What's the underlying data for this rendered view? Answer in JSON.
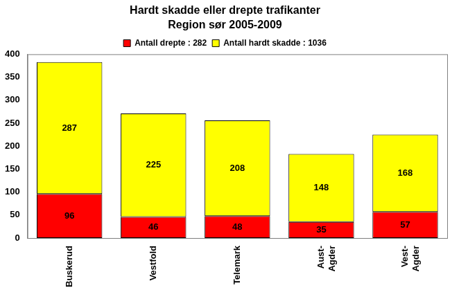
{
  "chart_data": {
    "type": "bar",
    "title": "Hardt skadde eller drepte trafikanter",
    "subtitle": "Region sør 2005-2009",
    "categories": [
      "Buskerud",
      "Vestfold",
      "Telemark",
      [
        "Aust-",
        "Agder"
      ],
      [
        "Vest-",
        "Agder"
      ]
    ],
    "series": [
      {
        "name": "Antall drepte : 282",
        "color": "#ff0000",
        "values": [
          96,
          46,
          48,
          35,
          57
        ]
      },
      {
        "name": "Antall hardt skadde : 1036",
        "color": "#ffff00",
        "values": [
          287,
          225,
          208,
          148,
          168
        ]
      }
    ],
    "ylim": [
      0,
      400
    ],
    "yticks": [
      0,
      50,
      100,
      150,
      200,
      250,
      300,
      350,
      400
    ],
    "stacked": true,
    "data_labels": true,
    "grid": false,
    "legend": "top"
  }
}
